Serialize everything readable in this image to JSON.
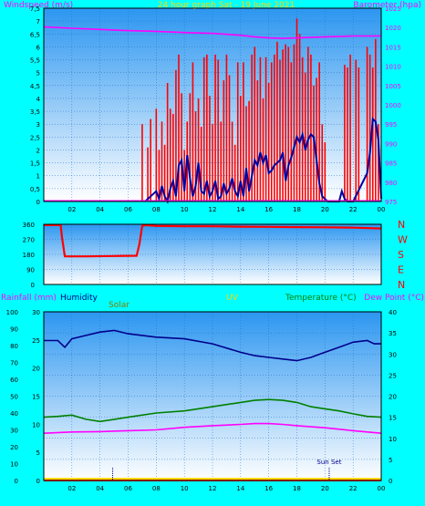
{
  "chart_data": [
    {
      "type": "line",
      "title": "24 hour graph Sat - 19 June 2021",
      "left_axis_label": "Windspeed (m/s)",
      "right_axis_label": "Barometer (hpa)",
      "x_ticks": [
        "02",
        "04",
        "06",
        "08",
        "10",
        "12",
        "14",
        "16",
        "18",
        "20",
        "22",
        "00"
      ],
      "y_left_ticks": [
        "0",
        "0,5",
        "1",
        "1,5",
        "2",
        "2,5",
        "3",
        "3,5",
        "4",
        "4,5",
        "5",
        "5,5",
        "6",
        "6,5",
        "7",
        "7,5"
      ],
      "y_right_ticks": [
        "975",
        "980",
        "985",
        "990",
        "995",
        "1000",
        "1005",
        "1010",
        "1015",
        "1020",
        "1025"
      ],
      "ylim_left": [
        0,
        7.5
      ],
      "ylim_right": [
        975,
        1025
      ],
      "series": [
        {
          "color": "#ff0000",
          "style": "bar",
          "x": [
            7.0,
            7.4,
            7.6,
            8.0,
            8.2,
            8.4,
            8.6,
            8.8,
            9.0,
            9.2,
            9.4,
            9.6,
            9.8,
            10.0,
            10.2,
            10.4,
            10.6,
            10.8,
            11.0,
            11.2,
            11.4,
            11.6,
            11.8,
            12.0,
            12.2,
            12.4,
            12.6,
            12.8,
            13.0,
            13.2,
            13.4,
            13.6,
            13.8,
            14.0,
            14.2,
            14.4,
            14.6,
            14.8,
            15.0,
            15.2,
            15.4,
            15.6,
            15.8,
            16.0,
            16.2,
            16.4,
            16.6,
            16.8,
            17.0,
            17.2,
            17.4,
            17.6,
            17.8,
            18.0,
            18.2,
            18.4,
            18.6,
            18.8,
            19.0,
            19.2,
            19.4,
            19.6,
            19.8,
            20.0,
            21.4,
            21.6,
            21.8,
            22.2,
            22.4,
            23.0,
            23.2,
            23.4,
            23.6,
            23.8
          ],
          "values": [
            3.0,
            2.1,
            3.2,
            3.6,
            2.0,
            3.1,
            2.2,
            4.6,
            3.6,
            3.4,
            5.1,
            5.7,
            4.2,
            2.0,
            3.1,
            4.2,
            5.4,
            3.5,
            4.0,
            2.9,
            5.6,
            5.7,
            4.1,
            3.0,
            5.7,
            5.5,
            3.1,
            4.7,
            5.7,
            4.9,
            3.1,
            2.2,
            5.4,
            4.1,
            5.4,
            3.7,
            3.9,
            5.7,
            6.0,
            4.7,
            5.6,
            4.0,
            5.6,
            4.6,
            5.4,
            5.7,
            6.2,
            5.5,
            5.9,
            6.1,
            6.0,
            5.4,
            6.1,
            7.1,
            6.5,
            5.6,
            5.0,
            6.0,
            5.7,
            4.5,
            4.8,
            5.4,
            3.0,
            2.3,
            5.3,
            5.2,
            5.7,
            5.5,
            5.2,
            6.0,
            5.7,
            5.2,
            6.3,
            3.0
          ]
        },
        {
          "color": "#0000a0",
          "style": "line",
          "x": [
            7.2,
            7.6,
            8.0,
            8.2,
            8.4,
            8.6,
            8.8,
            9.0,
            9.2,
            9.4,
            9.6,
            9.8,
            10.0,
            10.2,
            10.4,
            10.6,
            10.8,
            11.0,
            11.2,
            11.4,
            11.6,
            11.8,
            12.0,
            12.2,
            12.4,
            12.6,
            12.8,
            13.0,
            13.2,
            13.4,
            13.6,
            13.8,
            14.0,
            14.2,
            14.4,
            14.6,
            14.8,
            15.0,
            15.2,
            15.4,
            15.6,
            15.8,
            16.0,
            16.2,
            16.4,
            16.6,
            16.8,
            17.0,
            17.2,
            17.4,
            17.6,
            17.8,
            18.0,
            18.2,
            18.4,
            18.6,
            18.8,
            19.0,
            19.2,
            19.4,
            19.6,
            19.8,
            20.0,
            20.2,
            21.0,
            21.2,
            21.4,
            21.6,
            22.0,
            23.0,
            23.2,
            23.4,
            23.6,
            23.8,
            24.0
          ],
          "values": [
            0,
            0.2,
            0.4,
            0.1,
            0.6,
            0.2,
            0.0,
            0.5,
            0.8,
            0.2,
            1.4,
            1.6,
            0.4,
            1.8,
            0.9,
            0.2,
            0.6,
            1.5,
            0.4,
            0.3,
            0.8,
            0.2,
            0.4,
            0.8,
            0.1,
            0.2,
            0.7,
            0.3,
            0.5,
            0.9,
            0.4,
            0.2,
            0.8,
            0.2,
            1.3,
            0.4,
            1.0,
            1.6,
            1.4,
            1.9,
            1.5,
            1.8,
            1.1,
            1.2,
            1.4,
            1.5,
            1.6,
            1.9,
            0.8,
            1.4,
            1.7,
            2.1,
            2.5,
            2.3,
            2.6,
            2.0,
            2.4,
            2.6,
            2.5,
            1.6,
            0.7,
            0.2,
            0.1,
            0,
            0,
            0.4,
            0.1,
            0,
            0,
            1.1,
            1.9,
            3.2,
            3.1,
            2.4,
            0.1
          ]
        },
        {
          "color": "#ff00ff",
          "style": "line",
          "axis": "right",
          "x": [
            0,
            2,
            4,
            6,
            8,
            10,
            12,
            14,
            15,
            16,
            17,
            18,
            20,
            22,
            24
          ],
          "values": [
            1020.2,
            1019.8,
            1019.5,
            1019.2,
            1019.0,
            1018.7,
            1018.5,
            1018.0,
            1017.6,
            1017.3,
            1017.2,
            1017.3,
            1017.6,
            1017.8,
            1017.8
          ]
        }
      ]
    },
    {
      "type": "line",
      "x_ticks": [],
      "y_left_ticks": [
        "0",
        "90",
        "180",
        "270",
        "360"
      ],
      "y_right_ticks": [
        "N",
        "E",
        "S",
        "W",
        "N"
      ],
      "ylim": [
        0,
        360
      ],
      "series": [
        {
          "color": "#ff0000",
          "x": [
            0,
            1.2,
            1.3,
            1.5,
            3,
            5,
            6.6,
            6.8,
            7.0,
            7.2,
            8,
            10,
            12,
            14,
            16,
            18,
            20,
            22,
            24
          ],
          "values": [
            355,
            355,
            280,
            168,
            168,
            170,
            172,
            240,
            350,
            355,
            350,
            348,
            348,
            346,
            345,
            343,
            342,
            340,
            335
          ]
        }
      ]
    },
    {
      "type": "line",
      "labels": {
        "rainfall": "Rainfall (mm)",
        "humidity": "Humidity",
        "solar": "Solar",
        "uv": "UV",
        "temperature": "Temperature (°C)",
        "dew_point": "Dew Point (°C)"
      },
      "x_ticks": [
        "02",
        "04",
        "06",
        "08",
        "10",
        "12",
        "14",
        "16",
        "18",
        "20",
        "22",
        "00"
      ],
      "y_left_ticks": [
        "0",
        "10",
        "20",
        "30",
        "40",
        "50",
        "60",
        "70",
        "80",
        "90",
        "100"
      ],
      "y_mid_ticks": [
        "0",
        "5",
        "10",
        "15",
        "20",
        "25",
        "30"
      ],
      "y_right_ticks": [
        "0",
        "5",
        "10",
        "15",
        "20",
        "25",
        "30",
        "35",
        "40"
      ],
      "ylim_left": [
        0,
        100
      ],
      "ylim_mid": [
        0,
        30
      ],
      "ylim_right": [
        0,
        40
      ],
      "annotation": "Sun Set",
      "annotation_x": 20.3,
      "series": [
        {
          "name": "Humidity",
          "color": "#00008b",
          "x": [
            0,
            1,
            1.5,
            2,
            3,
            4,
            5,
            6,
            8,
            10,
            12,
            14,
            15,
            16,
            17,
            18,
            19,
            20,
            21,
            22,
            23,
            23.5,
            24
          ],
          "values": [
            83,
            83,
            79,
            84,
            86,
            88,
            89,
            87,
            85,
            84,
            81,
            76,
            74,
            73,
            72,
            71,
            73,
            76,
            79,
            82,
            83,
            81,
            81
          ]
        },
        {
          "name": "Temperature",
          "color": "#008000",
          "x": [
            0,
            1,
            2,
            3,
            4,
            6,
            8,
            10,
            12,
            14,
            15,
            16,
            17,
            18,
            19,
            20,
            21,
            22,
            23,
            24
          ],
          "values": [
            15.0,
            15.2,
            15.5,
            14.5,
            14.0,
            15.0,
            16.0,
            16.5,
            17.5,
            18.5,
            19.0,
            19.2,
            19.0,
            18.5,
            17.5,
            17.0,
            16.5,
            15.8,
            15.2,
            15.0
          ]
        },
        {
          "name": "Dew Point",
          "color": "#ff00ff",
          "x": [
            0,
            2,
            4,
            6,
            8,
            10,
            12,
            14,
            15,
            16,
            17,
            18,
            20,
            22,
            24
          ],
          "values": [
            11.2,
            11.5,
            11.6,
            11.8,
            12.0,
            12.6,
            13.0,
            13.3,
            13.5,
            13.5,
            13.3,
            13.0,
            12.5,
            11.8,
            11.2
          ]
        },
        {
          "name": "Rainfall",
          "color": "#ff0000",
          "x": [
            0,
            24
          ],
          "values": [
            0,
            0
          ]
        },
        {
          "name": "UV",
          "color": "#ffd700",
          "x": [
            0,
            24
          ],
          "values": [
            0.3,
            0.3
          ]
        }
      ]
    }
  ]
}
